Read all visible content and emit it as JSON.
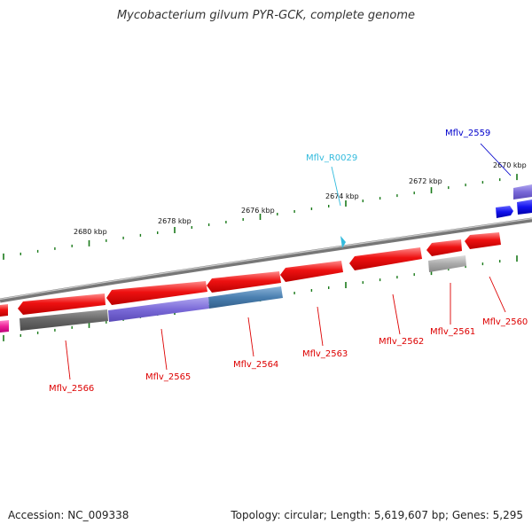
{
  "title": "Mycobacterium gilvum PYR-GCK, complete genome",
  "footer": {
    "accession": "Accession: NC_009338",
    "summary": "Topology: circular; Length: 5,619,607 bp; Genes: 5,295"
  },
  "colors": {
    "backbone": "#8a8a8a",
    "cds_red": "#ee1111",
    "cds_purple": "#7a6ad8",
    "cds_steel": "#4a7fb0",
    "cds_grey": "#666666",
    "cds_lightgrey": "#aaaaaa",
    "cds_blue": "#1111ee",
    "ticks": "#1a7a1a",
    "label_red": "#dd0000",
    "label_cyan": "#33bbdd",
    "label_blue": "#0000cc"
  },
  "scale_ticks": [
    "2670 kbp",
    "2672 kbp",
    "2674 kbp",
    "2676 kbp",
    "2678 kbp",
    "2680 kbp"
  ],
  "gene_labels": [
    {
      "text": "Mflv_2559",
      "color": "blue"
    },
    {
      "text": "Mflv_R0029",
      "color": "cyan"
    },
    {
      "text": "Mflv_2560",
      "color": "red"
    },
    {
      "text": "Mflv_2561",
      "color": "red"
    },
    {
      "text": "Mflv_2562",
      "color": "red"
    },
    {
      "text": "Mflv_2563",
      "color": "red"
    },
    {
      "text": "Mflv_2564",
      "color": "red"
    },
    {
      "text": "Mflv_2565",
      "color": "red"
    },
    {
      "text": "Mflv_2566",
      "color": "red"
    }
  ]
}
